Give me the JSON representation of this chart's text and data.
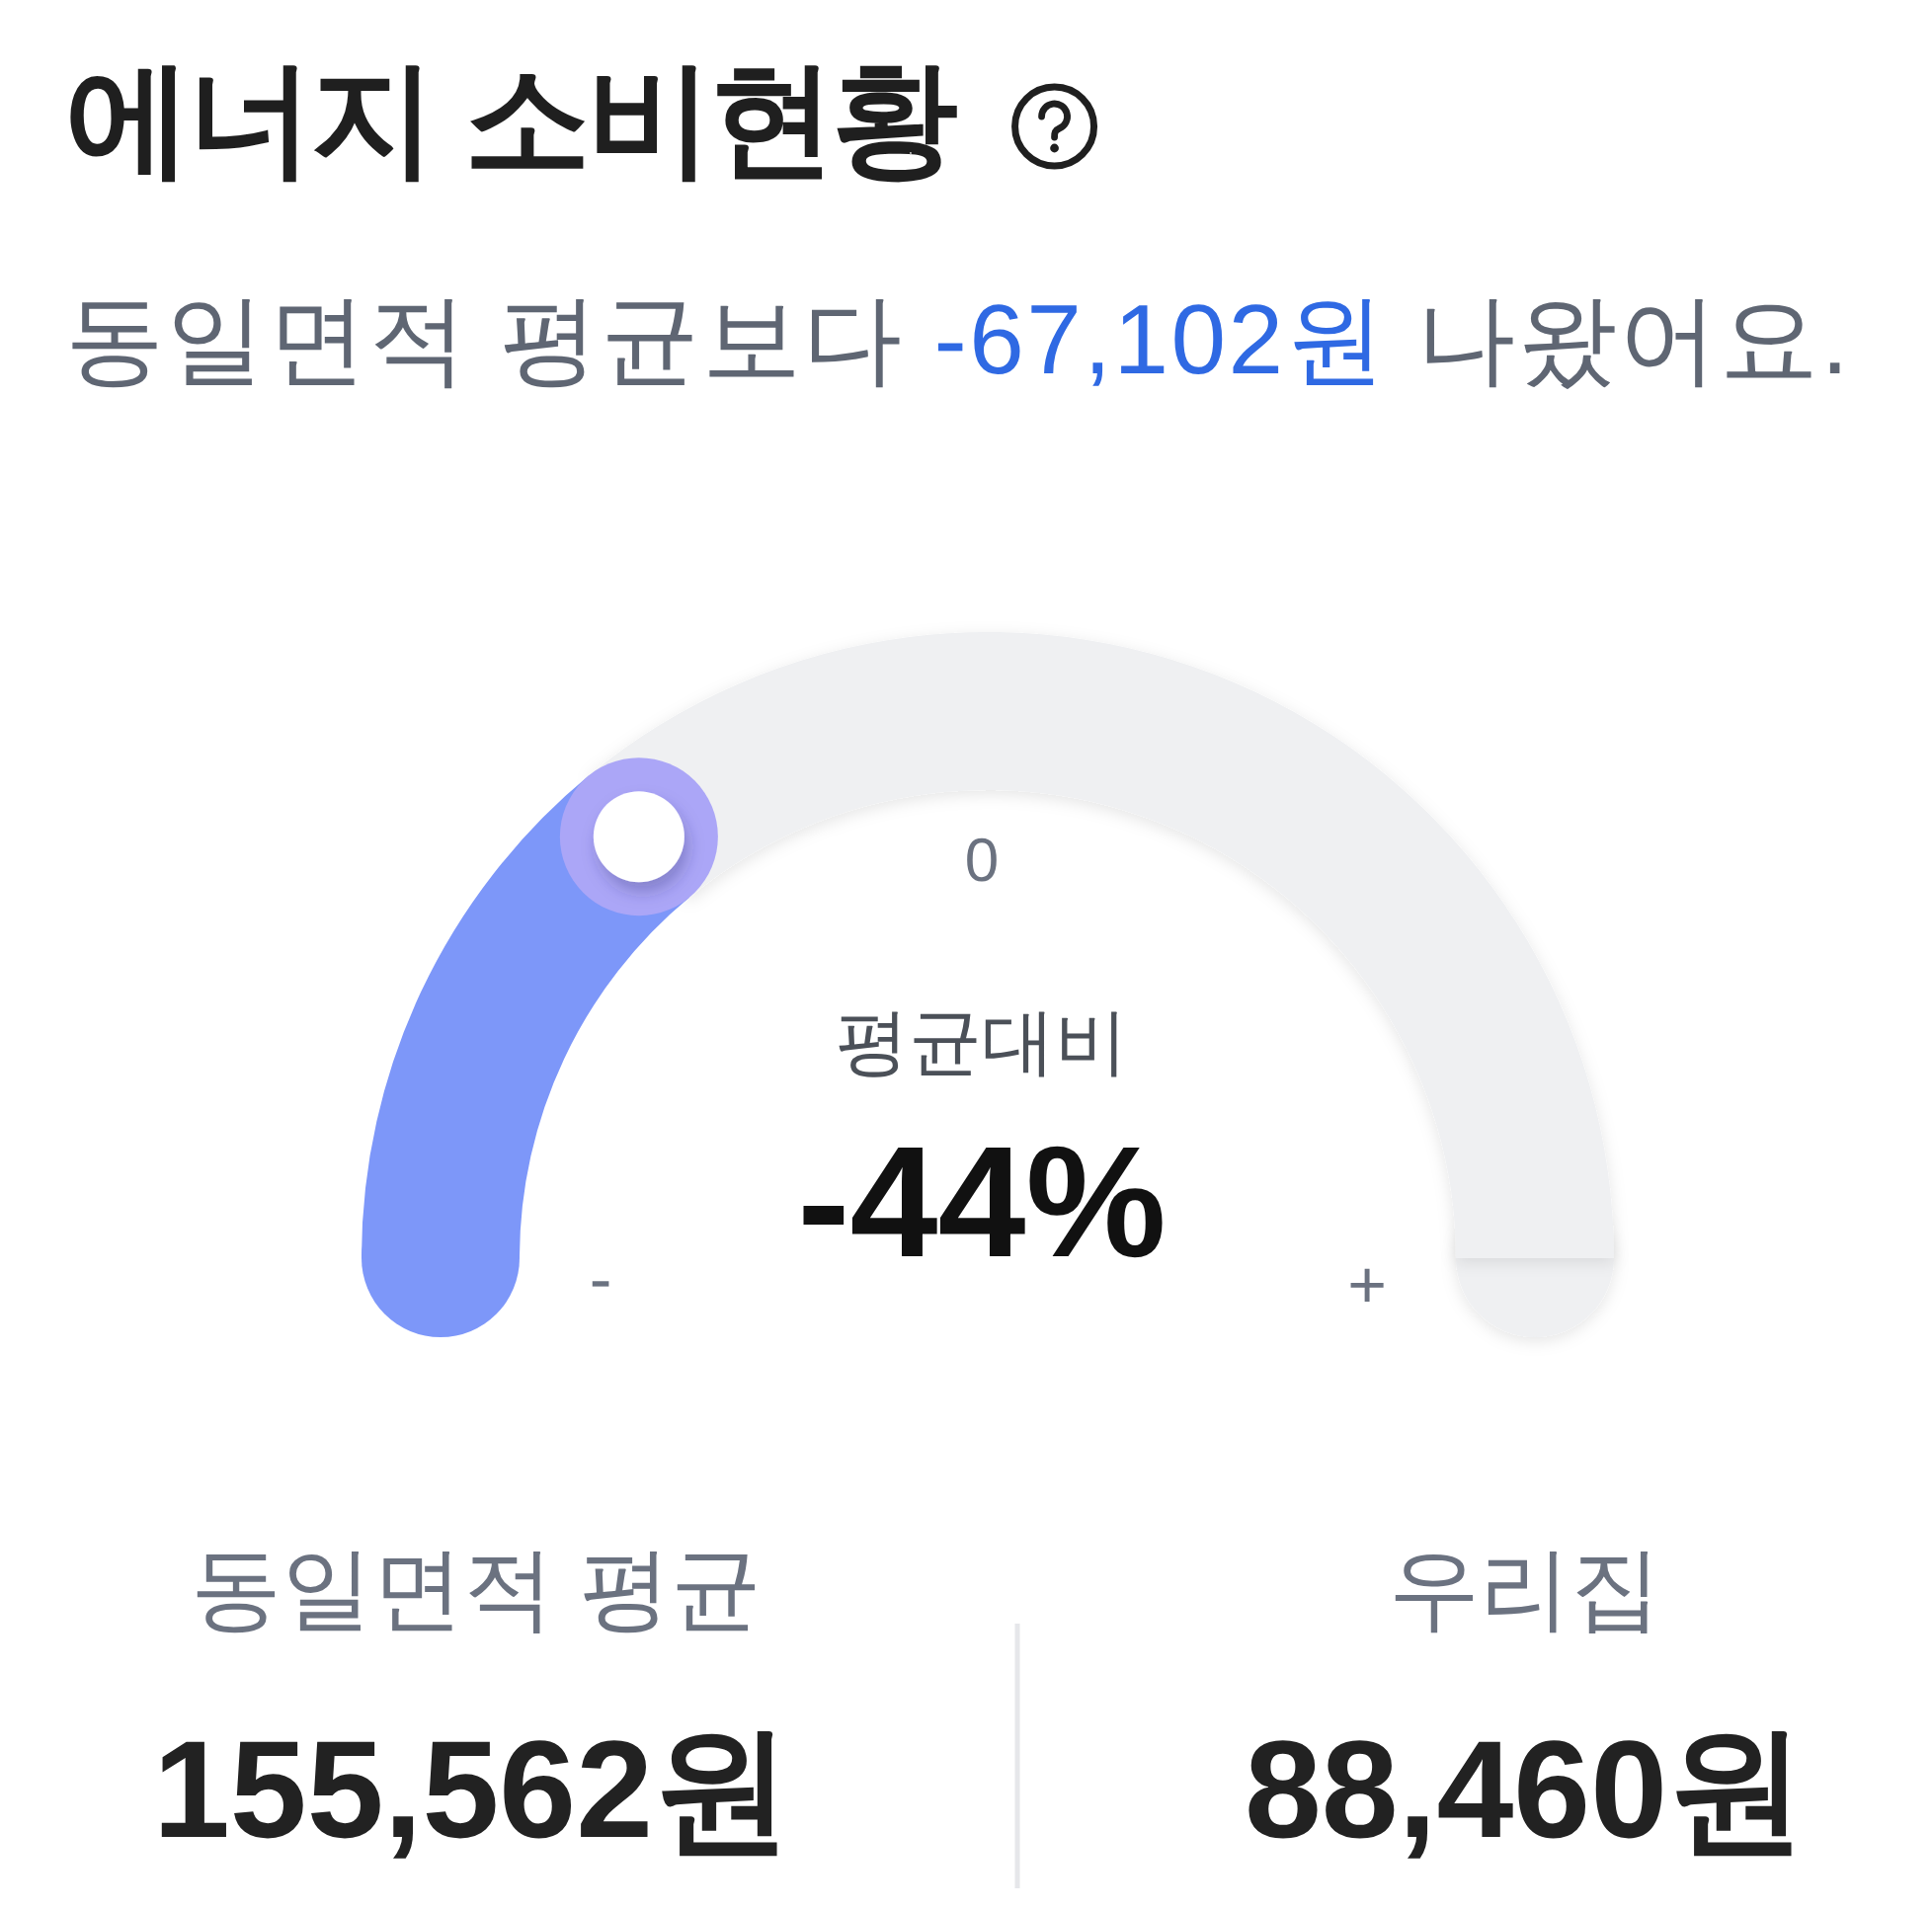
{
  "chart_data": {
    "type": "donut",
    "title": "에너지 소비현황",
    "subtitle": "동일면적 평균보다 -67,102원 나왔어요.",
    "categories": [
      null,
      null
    ],
    "values": [
      28,
      72
    ],
    "colors": [
      "#7d97f9",
      "#eff0f2"
    ],
    "annotations": [
      "0",
      "평균대비",
      "-44%",
      "-",
      "+",
      "동일면적 평균",
      "155,562원",
      "우리집",
      "88,460원"
    ]
  }
}
